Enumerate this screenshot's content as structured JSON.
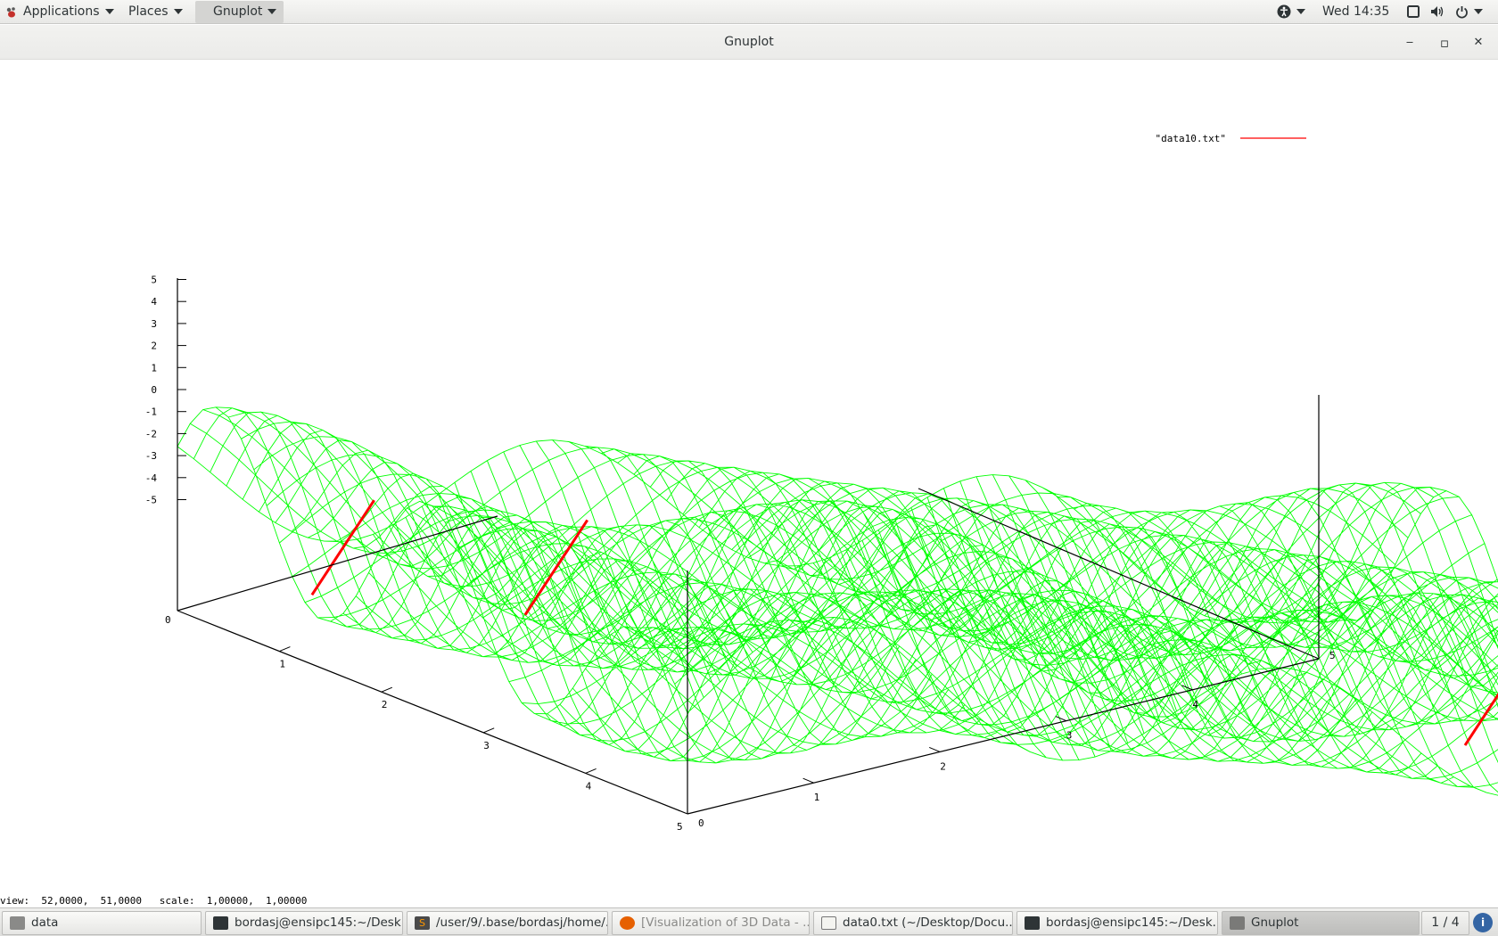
{
  "topbar": {
    "applications_label": "Applications",
    "places_label": "Places",
    "active_app_label": "Gnuplot",
    "clock": "Wed 14:35",
    "icons": [
      "accessibility-icon",
      "screen-icon",
      "volume-icon",
      "power-icon"
    ]
  },
  "window": {
    "title": "Gnuplot",
    "minimize": "‒",
    "maximize": "▫",
    "close": "✕"
  },
  "status_line": "view:  52,0000,  51,0000   scale:  1,00000,  1,00000",
  "taskbar": {
    "items": [
      {
        "label": "data",
        "icon": "folder-icon"
      },
      {
        "label": "bordasj@ensipc145:~/Desk...",
        "icon": "terminal-icon"
      },
      {
        "label": "/user/9/.base/bordasj/home/...",
        "icon": "sublime-icon"
      },
      {
        "label": "[Visualization of 3D Data - ...",
        "icon": "firefox-icon"
      },
      {
        "label": "data0.txt (~/Desktop/Docu...",
        "icon": "text-editor-icon"
      },
      {
        "label": "bordasj@ensipc145:~/Desk...",
        "icon": "terminal-icon"
      },
      {
        "label": "Gnuplot",
        "icon": "gnuplot-window-icon"
      }
    ],
    "pager": "1 / 4"
  },
  "chart_data": {
    "type": "surface",
    "legend": {
      "label": "\"data10.txt\"",
      "placement": "top-right",
      "color": "#ff0000"
    },
    "surface_color": "#00ff00",
    "hidden_side_color": "#ff0000",
    "view": {
      "rot_x": 52,
      "rot_z": 51
    },
    "x_axis": {
      "range": [
        0,
        5
      ],
      "ticks": [
        "0",
        "1",
        "2",
        "3",
        "4",
        "5"
      ]
    },
    "y_axis": {
      "range": [
        0,
        5
      ],
      "ticks": [
        "0",
        "1",
        "2",
        "3",
        "4",
        "5"
      ]
    },
    "z_axis": {
      "range": [
        -5,
        5
      ],
      "ticks": [
        "-5",
        "-4",
        "-3",
        "-2",
        "-1",
        "0",
        "1",
        "2",
        "3",
        "4",
        "5"
      ]
    }
  }
}
